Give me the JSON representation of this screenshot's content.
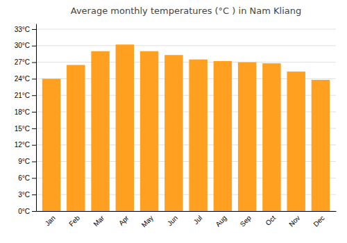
{
  "chart_data": {
    "type": "bar",
    "title": "Average monthly temperatures (°C ) in Nam Kliang",
    "categories": [
      "Jan",
      "Feb",
      "Mar",
      "Apr",
      "May",
      "Jun",
      "Jul",
      "Aug",
      "Sep",
      "Oct",
      "Nov",
      "Dec"
    ],
    "values": [
      24.0,
      26.5,
      29.0,
      30.2,
      29.0,
      28.3,
      27.5,
      27.2,
      27.0,
      26.8,
      25.3,
      23.8
    ],
    "color": "#FFA020",
    "ylim": [
      0,
      34
    ],
    "yticks": [
      {
        "value": 0,
        "label": "0°C"
      },
      {
        "value": 3,
        "label": "3°C"
      },
      {
        "value": 6,
        "label": "6°C"
      },
      {
        "value": 9,
        "label": "9°C"
      },
      {
        "value": 12,
        "label": "12°C"
      },
      {
        "value": 15,
        "label": "15°C"
      },
      {
        "value": 18,
        "label": "18°C"
      },
      {
        "value": 21,
        "label": "21°C"
      },
      {
        "value": 24,
        "label": "24°C"
      },
      {
        "value": 27,
        "label": "27°C"
      },
      {
        "value": 30,
        "label": "30°C"
      },
      {
        "value": 33,
        "label": "33°C"
      }
    ],
    "grid": true
  }
}
